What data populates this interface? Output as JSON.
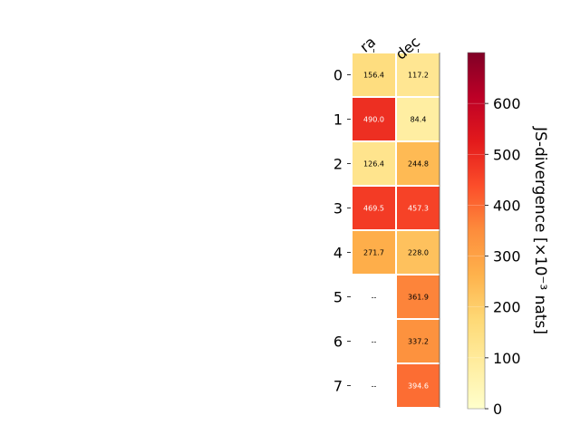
{
  "chart_data": {
    "type": "heatmap",
    "title": "",
    "columns": [
      "ra",
      "dec"
    ],
    "rows": [
      "0",
      "1",
      "2",
      "3",
      "4",
      "5",
      "6",
      "7"
    ],
    "values": [
      [
        156.4,
        117.2
      ],
      [
        490.0,
        84.4
      ],
      [
        126.4,
        244.8
      ],
      [
        469.5,
        457.3
      ],
      [
        271.7,
        228.0
      ],
      [
        null,
        361.9
      ],
      [
        null,
        337.2
      ],
      [
        null,
        394.6
      ]
    ],
    "cell_labels": [
      [
        "156.4",
        "117.2"
      ],
      [
        "490.0",
        "84.4"
      ],
      [
        "126.4",
        "244.8"
      ],
      [
        "469.5",
        "457.3"
      ],
      [
        "271.7",
        "228.0"
      ],
      [
        "--",
        "361.9"
      ],
      [
        "--",
        "337.2"
      ],
      [
        "--",
        "394.6"
      ]
    ],
    "colorbar": {
      "label": "JS-divergence [×10⁻³ nats]",
      "range": [
        0,
        700
      ],
      "ticks": [
        0,
        100,
        200,
        300,
        400,
        500,
        600
      ],
      "colormap": "YlOrRd"
    }
  }
}
